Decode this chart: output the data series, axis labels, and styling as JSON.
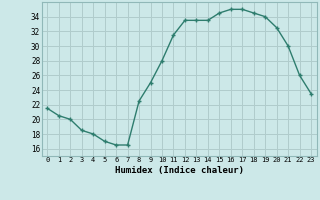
{
  "x": [
    0,
    1,
    2,
    3,
    4,
    5,
    6,
    7,
    8,
    9,
    10,
    11,
    12,
    13,
    14,
    15,
    16,
    17,
    18,
    19,
    20,
    21,
    22,
    23
  ],
  "y": [
    21.5,
    20.5,
    20.0,
    18.5,
    18.0,
    17.0,
    16.5,
    16.5,
    22.5,
    25.0,
    28.0,
    31.5,
    33.5,
    33.5,
    33.5,
    34.5,
    35.0,
    35.0,
    34.5,
    34.0,
    32.5,
    30.0,
    26.0,
    23.5
  ],
  "line_color": "#2e7d6e",
  "marker": "+",
  "bg_color": "#cce8e8",
  "grid_color": "#b0cccc",
  "xlabel": "Humidex (Indice chaleur)",
  "ylim": [
    15,
    36
  ],
  "xlim": [
    -0.5,
    23.5
  ],
  "yticks": [
    16,
    18,
    20,
    22,
    24,
    26,
    28,
    30,
    32,
    34
  ],
  "xticks": [
    0,
    1,
    2,
    3,
    4,
    5,
    6,
    7,
    8,
    9,
    10,
    11,
    12,
    13,
    14,
    15,
    16,
    17,
    18,
    19,
    20,
    21,
    22,
    23
  ]
}
